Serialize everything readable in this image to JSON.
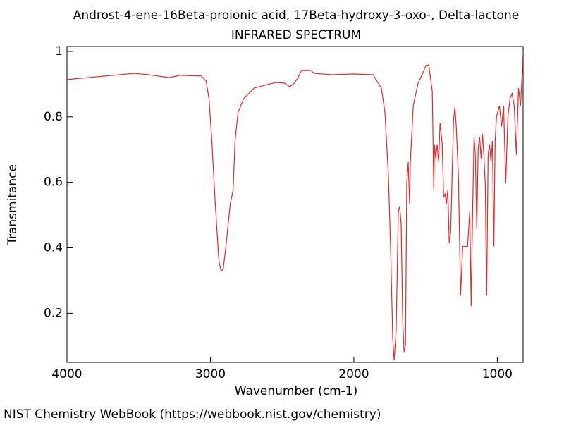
{
  "chart_data": {
    "type": "line",
    "title": "Androst-4-ene-16Beta-proionic acid, 17Beta-hydroxy-3-oxo-, Delta-lactone",
    "subtitle": "INFRARED SPECTRUM",
    "x_label": "Wavenumber (cm-1)",
    "y_label": "Transmitance",
    "footer": "NIST Chemistry WebBook (https://webbook.nist.gov/chemistry)",
    "xlim": [
      4000,
      820
    ],
    "ylim": [
      0.05,
      1.015
    ],
    "xticks": [
      4000,
      3000,
      2000,
      1000
    ],
    "yticks": [
      0.2,
      0.4,
      0.6,
      0.8,
      1
    ],
    "x": [
      4000,
      3729,
      3532,
      3433,
      3286,
      3212,
      3064,
      3030,
      3010,
      2990,
      2966,
      2941,
      2926,
      2911,
      2892,
      2862,
      2842,
      2828,
      2808,
      2768,
      2695,
      2547,
      2483,
      2448,
      2419,
      2389,
      2365,
      2301,
      2276,
      2153,
      2005,
      1867,
      1808,
      1783,
      1759,
      1744,
      1729,
      1719,
      1705,
      1690,
      1680,
      1670,
      1660,
      1650,
      1640,
      1631,
      1621,
      1611,
      1606,
      1586,
      1552,
      1522,
      1498,
      1478,
      1453,
      1443,
      1438,
      1429,
      1419,
      1409,
      1399,
      1384,
      1374,
      1364,
      1355,
      1345,
      1335,
      1325,
      1315,
      1305,
      1295,
      1286,
      1271,
      1256,
      1241,
      1207,
      1192,
      1182,
      1172,
      1162,
      1153,
      1143,
      1133,
      1123,
      1113,
      1103,
      1094,
      1084,
      1074,
      1064,
      1054,
      1044,
      1034,
      1024,
      1015,
      1005,
      985,
      970,
      956,
      941,
      926,
      911,
      897,
      882,
      867,
      852,
      838,
      823,
      820
    ],
    "series": [
      {
        "name": "Transmitance",
        "color": "#e8282a",
        "values": [
          0.914,
          0.925,
          0.933,
          0.929,
          0.92,
          0.927,
          0.925,
          0.91,
          0.856,
          0.727,
          0.533,
          0.361,
          0.329,
          0.335,
          0.404,
          0.533,
          0.576,
          0.727,
          0.813,
          0.856,
          0.888,
          0.905,
          0.903,
          0.892,
          0.901,
          0.92,
          0.942,
          0.942,
          0.933,
          0.929,
          0.931,
          0.929,
          0.888,
          0.813,
          0.619,
          0.404,
          0.125,
          0.056,
          0.146,
          0.512,
          0.527,
          0.469,
          0.189,
          0.082,
          0.103,
          0.598,
          0.662,
          0.533,
          0.662,
          0.834,
          0.903,
          0.931,
          0.957,
          0.959,
          0.877,
          0.576,
          0.716,
          0.673,
          0.716,
          0.662,
          0.781,
          0.716,
          0.555,
          0.566,
          0.533,
          0.576,
          0.415,
          0.447,
          0.619,
          0.791,
          0.83,
          0.77,
          0.619,
          0.254,
          0.404,
          0.404,
          0.512,
          0.222,
          0.512,
          0.738,
          0.684,
          0.458,
          0.705,
          0.738,
          0.673,
          0.748,
          0.684,
          0.598,
          0.254,
          0.684,
          0.716,
          0.662,
          0.727,
          0.404,
          0.727,
          0.802,
          0.834,
          0.77,
          0.834,
          0.598,
          0.802,
          0.856,
          0.871,
          0.834,
          0.684,
          0.888,
          0.834,
          0.963,
          1.0
        ]
      }
    ]
  }
}
